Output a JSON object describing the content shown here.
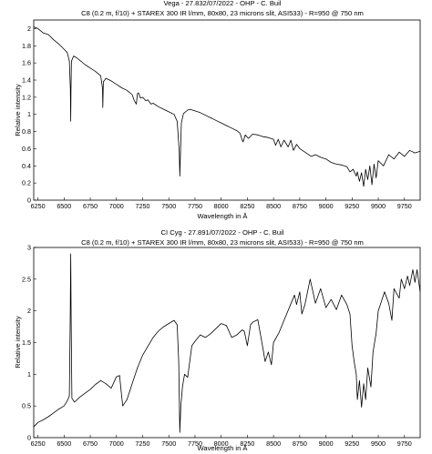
{
  "chart_data": [
    {
      "type": "line",
      "title": "Vega - 27.832/07/2022 - OHP - C. Buil",
      "subtitle": "C8 (0.2 m, f/10) + STAREX 300 IR l/mm, 80x80, 23 microns slit, ASI533) - R=950 @ 750 nm",
      "xlabel": "Wavelength in Å",
      "ylabel": "Relative intensity",
      "xlim": [
        6210,
        9900
      ],
      "ylim": [
        0,
        2.1
      ],
      "xticks": [
        6250,
        6500,
        6750,
        7000,
        7250,
        7500,
        7750,
        8000,
        8250,
        8500,
        8750,
        9000,
        9250,
        9500,
        9750
      ],
      "yticks": [
        0,
        0.2,
        0.4,
        0.6,
        0.8,
        1,
        1.2,
        1.4,
        1.6,
        1.8,
        2
      ],
      "ytick_labels": [
        "0",
        "0.2",
        "0.4",
        "0.6",
        "0.8",
        "1",
        "1.2",
        "1.4",
        "1.6",
        "1.8",
        "2"
      ],
      "grid": false,
      "series": [
        {
          "x": [
            6210,
            6250,
            6300,
            6350,
            6400,
            6450,
            6500,
            6530,
            6550,
            6560,
            6563,
            6566,
            6570,
            6590,
            6620,
            6650,
            6700,
            6750,
            6800,
            6850,
            6867,
            6870,
            6875,
            6900,
            6950,
            7000,
            7050,
            7100,
            7150,
            7170,
            7190,
            7200,
            7210,
            7230,
            7250,
            7280,
            7300,
            7330,
            7350,
            7400,
            7450,
            7500,
            7550,
            7580,
            7600,
            7605,
            7610,
            7620,
            7640,
            7680,
            7700,
            7750,
            7800,
            7850,
            7900,
            7950,
            8000,
            8050,
            8100,
            8150,
            8180,
            8200,
            8210,
            8230,
            8260,
            8300,
            8350,
            8400,
            8450,
            8500,
            8520,
            8545,
            8570,
            8600,
            8640,
            8665,
            8690,
            8720,
            8750,
            8800,
            8860,
            8900,
            8950,
            9000,
            9050,
            9100,
            9150,
            9200,
            9230,
            9260,
            9290,
            9300,
            9320,
            9340,
            9360,
            9380,
            9400,
            9420,
            9440,
            9460,
            9480,
            9500,
            9550,
            9600,
            9650,
            9700,
            9750,
            9800,
            9850,
            9900
          ],
          "y": [
            2.02,
            2.0,
            1.95,
            1.93,
            1.87,
            1.82,
            1.76,
            1.72,
            1.62,
            1.3,
            0.92,
            1.3,
            1.62,
            1.68,
            1.66,
            1.63,
            1.58,
            1.54,
            1.5,
            1.45,
            1.3,
            1.08,
            1.38,
            1.42,
            1.39,
            1.35,
            1.31,
            1.28,
            1.23,
            1.16,
            1.12,
            1.24,
            1.25,
            1.19,
            1.2,
            1.16,
            1.17,
            1.12,
            1.13,
            1.09,
            1.06,
            1.03,
            1.0,
            0.92,
            0.57,
            0.28,
            0.5,
            0.9,
            1.01,
            1.05,
            1.06,
            1.04,
            1.02,
            0.99,
            0.96,
            0.93,
            0.9,
            0.87,
            0.84,
            0.81,
            0.78,
            0.7,
            0.68,
            0.76,
            0.72,
            0.77,
            0.76,
            0.74,
            0.73,
            0.71,
            0.64,
            0.71,
            0.62,
            0.7,
            0.62,
            0.7,
            0.58,
            0.65,
            0.6,
            0.56,
            0.51,
            0.53,
            0.5,
            0.48,
            0.44,
            0.42,
            0.41,
            0.39,
            0.33,
            0.36,
            0.28,
            0.33,
            0.22,
            0.32,
            0.16,
            0.36,
            0.24,
            0.4,
            0.18,
            0.42,
            0.26,
            0.46,
            0.4,
            0.53,
            0.48,
            0.56,
            0.51,
            0.58,
            0.55,
            0.57
          ]
        }
      ]
    },
    {
      "type": "line",
      "title": "CI Cyg - 27.891/07/2022 - OHP - C. Buil",
      "subtitle": "C8 (0.2 m, f/10) + STAREX 300 IR l/mm, 80x80, 23 microns slit, ASI533) - R=950 @ 750 nm",
      "xlabel": "Wavelength in Å",
      "ylabel": "Relative intensity",
      "xlim": [
        6210,
        9900
      ],
      "ylim": [
        0,
        3
      ],
      "xticks": [
        6250,
        6500,
        6750,
        7000,
        7250,
        7500,
        7750,
        8000,
        8250,
        8500,
        8750,
        9000,
        9250,
        9500,
        9750
      ],
      "yticks": [
        0,
        0.5,
        1,
        1.5,
        2,
        2.5,
        3
      ],
      "ytick_labels": [
        "0",
        "0.5",
        "1",
        "1.5",
        "2",
        "2.5",
        "3"
      ],
      "grid": false,
      "series": [
        {
          "x": [
            6210,
            6250,
            6300,
            6350,
            6400,
            6450,
            6500,
            6530,
            6550,
            6558,
            6563,
            6568,
            6575,
            6600,
            6650,
            6700,
            6750,
            6800,
            6850,
            6900,
            6950,
            7000,
            7030,
            7050,
            7060,
            7080,
            7100,
            7150,
            7200,
            7250,
            7300,
            7350,
            7400,
            7450,
            7500,
            7550,
            7580,
            7595,
            7605,
            7615,
            7630,
            7650,
            7680,
            7700,
            7720,
            7750,
            7800,
            7850,
            7900,
            7950,
            8000,
            8050,
            8100,
            8150,
            8200,
            8220,
            8250,
            8280,
            8300,
            8350,
            8400,
            8420,
            8450,
            8480,
            8500,
            8550,
            8600,
            8650,
            8700,
            8720,
            8750,
            8770,
            8800,
            8850,
            8900,
            8950,
            9000,
            9050,
            9100,
            9150,
            9200,
            9230,
            9250,
            9270,
            9290,
            9300,
            9320,
            9340,
            9360,
            9380,
            9400,
            9430,
            9450,
            9480,
            9500,
            9530,
            9560,
            9600,
            9630,
            9650,
            9700,
            9720,
            9750,
            9780,
            9800,
            9830,
            9850,
            9870,
            9900
          ],
          "y": [
            0.17,
            0.24,
            0.28,
            0.33,
            0.39,
            0.45,
            0.5,
            0.58,
            0.66,
            1.8,
            2.9,
            1.8,
            0.62,
            0.56,
            0.64,
            0.7,
            0.76,
            0.84,
            0.9,
            0.85,
            0.78,
            0.96,
            0.98,
            0.65,
            0.5,
            0.55,
            0.6,
            0.85,
            1.1,
            1.3,
            1.44,
            1.58,
            1.68,
            1.75,
            1.8,
            1.85,
            1.78,
            1.2,
            0.08,
            0.5,
            0.8,
            1.0,
            0.95,
            1.2,
            1.45,
            1.52,
            1.62,
            1.58,
            1.64,
            1.72,
            1.8,
            1.77,
            1.58,
            1.62,
            1.7,
            1.68,
            1.45,
            1.78,
            1.82,
            1.86,
            1.4,
            1.2,
            1.35,
            1.15,
            1.5,
            1.65,
            1.85,
            2.05,
            2.25,
            2.1,
            2.3,
            1.95,
            2.1,
            2.5,
            2.12,
            2.35,
            2.05,
            2.18,
            2.02,
            2.25,
            2.1,
            1.95,
            1.45,
            1.2,
            1.0,
            0.6,
            0.9,
            0.48,
            0.85,
            0.6,
            1.1,
            0.8,
            1.35,
            1.65,
            2.0,
            2.15,
            2.3,
            2.12,
            1.85,
            2.35,
            2.2,
            2.5,
            2.35,
            2.55,
            2.4,
            2.65,
            2.45,
            2.65,
            2.3
          ]
        }
      ]
    }
  ]
}
